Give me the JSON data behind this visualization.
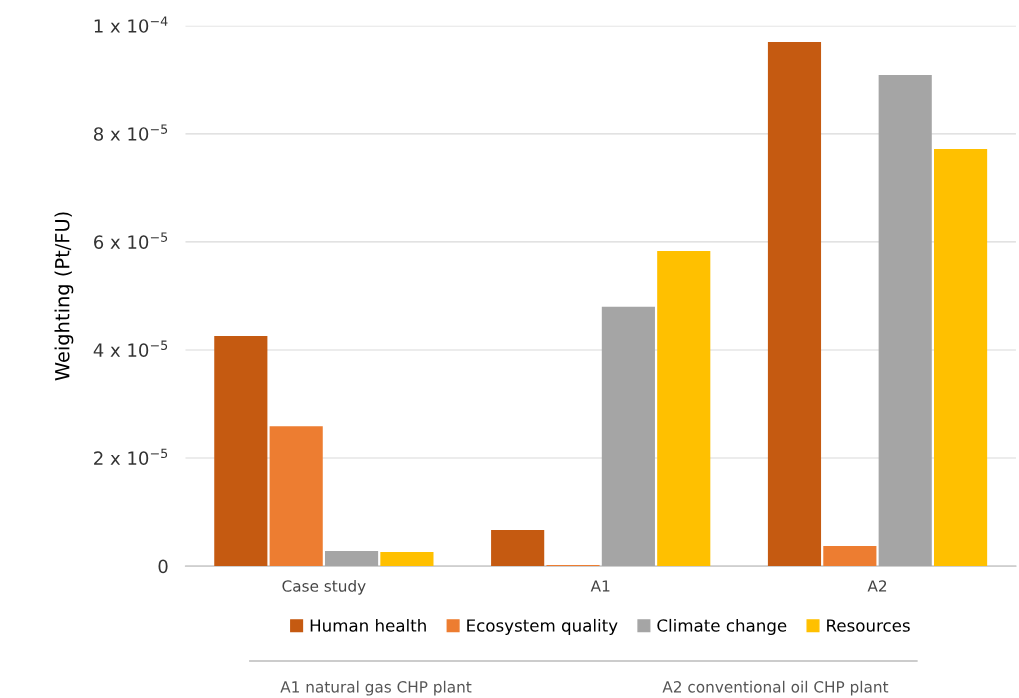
{
  "chart_data": {
    "type": "bar",
    "ylabel": "Weighting (Pt/FU)",
    "categories": [
      "Case study",
      "A1",
      "A2"
    ],
    "series": [
      {
        "name": "Human health",
        "color": "#c55a11",
        "values": [
          4.26e-05,
          6.7e-06,
          9.7e-05
        ]
      },
      {
        "name": "Ecosystem quality",
        "color": "#ed7d31",
        "values": [
          2.59e-05,
          2e-07,
          3.7e-06
        ]
      },
      {
        "name": "Climate change",
        "color": "#a5a5a5",
        "values": [
          2.8e-06,
          4.8e-05,
          9.09e-05
        ]
      },
      {
        "name": "Resources",
        "color": "#ffc000",
        "values": [
          2.6e-06,
          5.83e-05,
          7.72e-05
        ]
      }
    ],
    "ylim": [
      0,
      0.0001
    ],
    "yticks": [
      {
        "value": 0,
        "label": "0"
      },
      {
        "value": 2e-05,
        "label": "2 x 10$^{−5}$"
      },
      {
        "value": 4e-05,
        "label": "4 x 10$^{−5}$"
      },
      {
        "value": 6e-05,
        "label": "6 x 10$^{−5}$"
      },
      {
        "value": 8e-05,
        "label": "8 x 10$^{−5}$"
      },
      {
        "value": 0.0001,
        "label": "1 x 10$^{−4}$"
      }
    ],
    "grid": "y",
    "legend": "bottom",
    "annotations": [
      "A1 natural gas CHP plant",
      "A2 conventional oil CHP plant"
    ]
  }
}
